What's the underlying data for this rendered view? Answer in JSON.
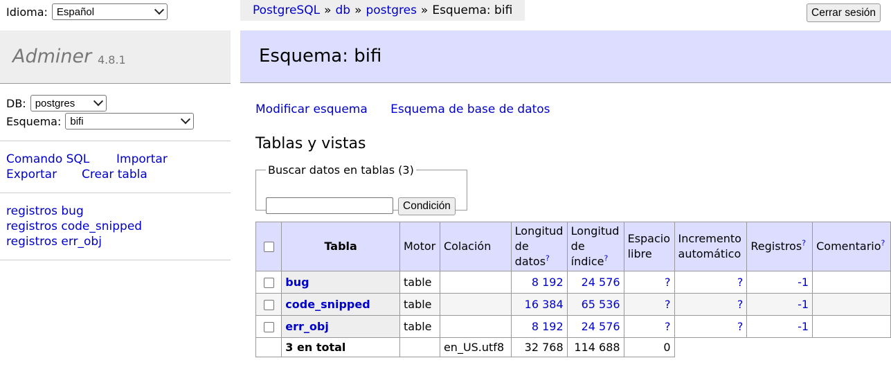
{
  "language": {
    "label": "Idioma:",
    "selected": "Español"
  },
  "brand": {
    "name": "Adminer",
    "version": "4.8.1"
  },
  "db_selector": {
    "db_label": "DB:",
    "db_value": "postgres",
    "schema_label": "Esquema:",
    "schema_value": "bifi"
  },
  "commands": {
    "sql": "Comando SQL",
    "import": "Importar",
    "export": "Exportar",
    "create_table": "Crear tabla"
  },
  "table_links": [
    "registros bug",
    "registros code_snipped",
    "registros err_obj"
  ],
  "breadcrumb": {
    "driver": "PostgreSQL",
    "sep": "»",
    "db": "db",
    "database": "postgres",
    "current": "Esquema: bifi"
  },
  "logout": "Cerrar sesión",
  "heading": "Esquema: bifi",
  "links": {
    "modify": "Modificar esquema",
    "db_schema": "Esquema de base de datos"
  },
  "tables_title": "Tablas y vistas",
  "search": {
    "legend": "Buscar datos en tablas (3)",
    "value": "",
    "button": "Condición"
  },
  "table": {
    "headers": {
      "table": "Tabla",
      "engine": "Motor",
      "collation": "Colación",
      "data_length_1": "Longitud",
      "data_length_2": "de",
      "data_length_3": "datos",
      "index_length_1": "Longitud",
      "index_length_2": "de",
      "index_length_3": "índice",
      "free_1": "Espacio",
      "free_2": "libre",
      "auto_1": "Incremento",
      "auto_2": "automático",
      "rows": "Registros",
      "comment": "Comentario",
      "help": "?"
    },
    "rows": [
      {
        "name": "bug",
        "engine": "table",
        "collation": "",
        "data_length": "8 192",
        "index_length": "24 576",
        "free": "?",
        "auto_increment": "?",
        "rows": "-1",
        "comment": ""
      },
      {
        "name": "code_snipped",
        "engine": "table",
        "collation": "",
        "data_length": "16 384",
        "index_length": "65 536",
        "free": "?",
        "auto_increment": "?",
        "rows": "-1",
        "comment": ""
      },
      {
        "name": "err_obj",
        "engine": "table",
        "collation": "",
        "data_length": "8 192",
        "index_length": "24 576",
        "free": "?",
        "auto_increment": "?",
        "rows": "-1",
        "comment": ""
      }
    ],
    "total": {
      "label": "3 en total",
      "collation": "en_US.utf8",
      "data_length": "32 768",
      "index_length": "114 688",
      "free": "0"
    }
  }
}
